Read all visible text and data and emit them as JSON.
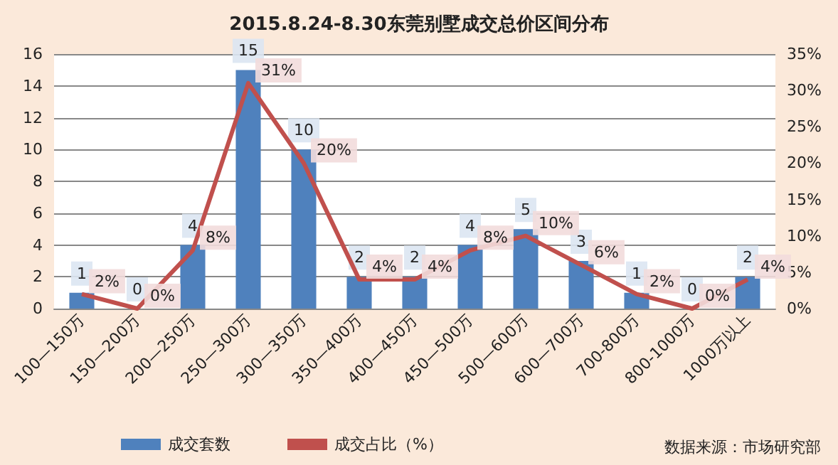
{
  "chart_data": {
    "type": "bar",
    "title": "2015.8.24-8.30东莞别墅成交总价区间分布",
    "categories": [
      "100—150万",
      "150—200万",
      "200—250万",
      "250—300万",
      "300—350万",
      "350—400万",
      "400—450万",
      "450—500万",
      "500—600万",
      "600—700万",
      "700-800万",
      "800-1000万",
      "1000万以上"
    ],
    "series": [
      {
        "name": "成交套数",
        "color": "#4f81bd",
        "values": [
          1,
          0,
          4,
          15,
          10,
          2,
          2,
          4,
          5,
          3,
          1,
          0,
          2
        ],
        "value_labels": [
          "1",
          "0",
          "4",
          "15",
          "10",
          "2",
          "2",
          "4",
          "5",
          "3",
          "1",
          "0",
          "2"
        ]
      },
      {
        "name": "成交占比（%）",
        "type": "line",
        "axis": "y2",
        "color": "#c0504d",
        "values": [
          2,
          0,
          8,
          31,
          20,
          4,
          4,
          8,
          10,
          6,
          2,
          0,
          4
        ],
        "value_labels": [
          "2%",
          "0%",
          "8%",
          "31%",
          "20%",
          "4%",
          "4%",
          "8%",
          "10%",
          "6%",
          "2%",
          "0%",
          "4%"
        ]
      }
    ],
    "ylim": [
      0,
      16
    ],
    "yticks": [
      0,
      2,
      4,
      6,
      8,
      10,
      12,
      14,
      16
    ],
    "y2lim": [
      0,
      35
    ],
    "y2ticks": [
      {
        "value": 0,
        "label": "0%"
      },
      {
        "value": 5,
        "label": "5%"
      },
      {
        "value": 10,
        "label": "10%"
      },
      {
        "value": 15,
        "label": "15%"
      },
      {
        "value": 20,
        "label": "20%"
      },
      {
        "value": 25,
        "label": "25%"
      },
      {
        "value": 30,
        "label": "30%"
      },
      {
        "value": 35,
        "label": "35%"
      }
    ],
    "grid": "y",
    "legend": "bottom",
    "marker": "none",
    "annotations": [
      "数据来源：市场研究部"
    ]
  }
}
